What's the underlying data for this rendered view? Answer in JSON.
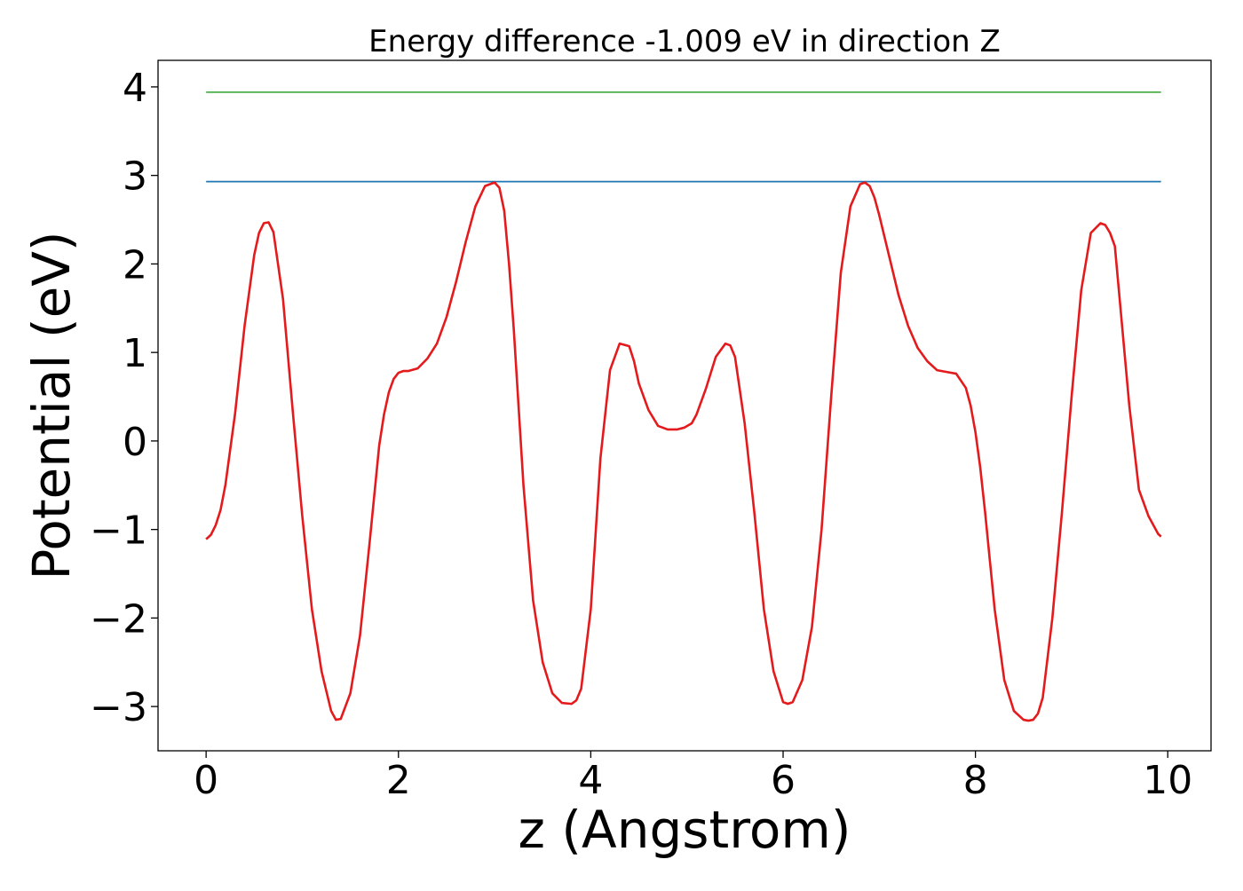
{
  "chart_data": {
    "type": "line",
    "title": "Energy difference -1.009 eV in direction Z",
    "xlabel": "z (Angstrom)",
    "ylabel": "Potential (eV)",
    "xlim": [
      -0.5,
      10.45
    ],
    "ylim": [
      -3.5,
      4.3
    ],
    "xticks": [
      0,
      2,
      4,
      6,
      8,
      10
    ],
    "xtick_labels": [
      "0",
      "2",
      "4",
      "6",
      "8",
      "10"
    ],
    "yticks": [
      -3,
      -2,
      -1,
      0,
      1,
      2,
      3,
      4
    ],
    "ytick_labels": [
      "−3",
      "−2",
      "−1",
      "0",
      "1",
      "2",
      "3",
      "4"
    ],
    "grid": false,
    "legend": "none",
    "series": [
      {
        "color": "#e41a1c",
        "x": [
          0.0,
          0.05,
          0.1,
          0.15,
          0.2,
          0.3,
          0.4,
          0.5,
          0.55,
          0.6,
          0.65,
          0.7,
          0.8,
          0.9,
          1.0,
          1.1,
          1.2,
          1.3,
          1.35,
          1.4,
          1.5,
          1.6,
          1.7,
          1.8,
          1.85,
          1.9,
          1.95,
          2.0,
          2.05,
          2.1,
          2.2,
          2.3,
          2.4,
          2.5,
          2.6,
          2.7,
          2.8,
          2.9,
          3.0,
          3.05,
          3.1,
          3.15,
          3.2,
          3.3,
          3.4,
          3.5,
          3.6,
          3.7,
          3.8,
          3.85,
          3.9,
          4.0,
          4.1,
          4.2,
          4.3,
          4.4,
          4.45,
          4.5,
          4.6,
          4.7,
          4.8,
          4.9,
          4.97,
          5.05,
          5.1,
          5.2,
          5.3,
          5.4,
          5.45,
          5.5,
          5.6,
          5.7,
          5.8,
          5.9,
          6.0,
          6.05,
          6.1,
          6.2,
          6.3,
          6.4,
          6.5,
          6.6,
          6.7,
          6.8,
          6.85,
          6.9,
          6.95,
          7.0,
          7.1,
          7.2,
          7.3,
          7.4,
          7.5,
          7.6,
          7.7,
          7.8,
          7.9,
          7.95,
          8.0,
          8.05,
          8.1,
          8.2,
          8.3,
          8.4,
          8.5,
          8.55,
          8.6,
          8.65,
          8.7,
          8.8,
          8.9,
          9.0,
          9.1,
          9.2,
          9.3,
          9.35,
          9.4,
          9.45,
          9.5,
          9.6,
          9.7,
          9.8,
          9.85,
          9.9,
          9.93
        ],
        "y": [
          -1.11,
          -1.06,
          -0.95,
          -0.78,
          -0.5,
          0.3,
          1.3,
          2.1,
          2.35,
          2.46,
          2.47,
          2.36,
          1.6,
          0.35,
          -0.85,
          -1.9,
          -2.6,
          -3.05,
          -3.15,
          -3.14,
          -2.85,
          -2.2,
          -1.15,
          -0.05,
          0.3,
          0.55,
          0.7,
          0.77,
          0.79,
          0.79,
          0.82,
          0.93,
          1.1,
          1.4,
          1.8,
          2.25,
          2.65,
          2.88,
          2.92,
          2.86,
          2.6,
          2.0,
          1.25,
          -0.5,
          -1.8,
          -2.5,
          -2.85,
          -2.96,
          -2.97,
          -2.93,
          -2.8,
          -1.9,
          -0.2,
          0.8,
          1.1,
          1.07,
          0.9,
          0.65,
          0.35,
          0.17,
          0.13,
          0.13,
          0.15,
          0.2,
          0.3,
          0.6,
          0.95,
          1.1,
          1.08,
          0.95,
          0.2,
          -0.8,
          -1.9,
          -2.6,
          -2.95,
          -2.97,
          -2.95,
          -2.7,
          -2.1,
          -1.0,
          0.5,
          1.9,
          2.65,
          2.9,
          2.92,
          2.88,
          2.75,
          2.55,
          2.1,
          1.65,
          1.3,
          1.05,
          0.9,
          0.8,
          0.78,
          0.76,
          0.6,
          0.4,
          0.1,
          -0.3,
          -0.8,
          -1.9,
          -2.7,
          -3.05,
          -3.15,
          -3.16,
          -3.15,
          -3.08,
          -2.9,
          -2.0,
          -0.8,
          0.5,
          1.7,
          2.35,
          2.46,
          2.44,
          2.35,
          2.2,
          1.6,
          0.4,
          -0.55,
          -0.85,
          -0.95,
          -1.05,
          -1.08
        ]
      },
      {
        "color": "#1f77b4",
        "x": [
          0.0,
          9.93
        ],
        "y": [
          2.93,
          2.93
        ]
      },
      {
        "color": "#4daf4a",
        "x": [
          0.0,
          9.93
        ],
        "y": [
          3.94,
          3.94
        ]
      }
    ]
  }
}
